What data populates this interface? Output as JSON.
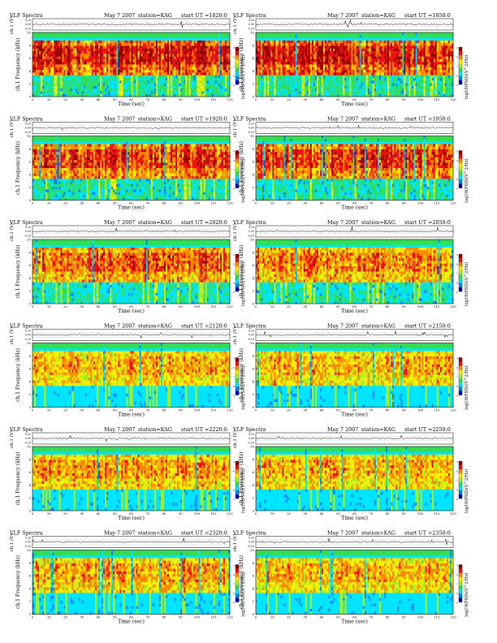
{
  "page": {
    "title": "VLF Spectra",
    "date": "May 7 2007",
    "station": "station=KAG",
    "start_prefix": "start  UT  =",
    "colors": {
      "spectrogram_scale": [
        "#0000cc",
        "#0088ff",
        "#00e5ff",
        "#33dd55",
        "#a6ee22",
        "#ffee00",
        "#ff8800",
        "#ee1111",
        "#990000"
      ],
      "waveform_line": "#000000"
    }
  },
  "chart_data": [
    {
      "type": "heatmap",
      "title": "VLF Spectra",
      "date": "May 7 2007",
      "station": "station=KAG",
      "start_ut": "1820:0",
      "waveform": {
        "ylabel": "ch.1 (V)",
        "ticks": [
          "0.20",
          "0.00",
          "-0.20"
        ]
      },
      "xlabel": "Time  (sec)",
      "xlim": [
        0,
        120
      ],
      "xticks": [
        0,
        10,
        20,
        30,
        40,
        50,
        60,
        70,
        80,
        90,
        100,
        110,
        120
      ],
      "ylabel": "ch.1 Frequency  (kHz)",
      "ylim": [
        0,
        10
      ],
      "yticks": [
        0,
        2,
        4,
        6,
        8,
        10
      ],
      "colorbar_label": "log10(PSD)(V^2/Hz)",
      "cbar_ticks": [
        "-5",
        "-6",
        "-7",
        "-8",
        "-9"
      ],
      "band_strength": 0.9,
      "lower_noise": 0.35
    },
    {
      "type": "heatmap",
      "title": "VLF Spectra",
      "date": "May 7 2007",
      "station": "station=KAG",
      "start_ut": "1850:0",
      "waveform": {
        "ylabel": "ch.1 (V)",
        "ticks": [
          "0.20",
          "0.00",
          "-0.20"
        ]
      },
      "xlabel": "Time  (sec)",
      "xlim": [
        0,
        120
      ],
      "xticks": [
        0,
        10,
        20,
        30,
        40,
        50,
        60,
        70,
        80,
        90,
        100,
        110,
        120
      ],
      "ylabel": "ch.1 Frequency  (kHz)",
      "ylim": [
        0,
        10
      ],
      "yticks": [
        0,
        2,
        4,
        6,
        8,
        10
      ],
      "colorbar_label": "log10(PSD)(V^2/Hz)",
      "cbar_ticks": [
        "-5",
        "-6",
        "-7",
        "-8",
        "-9"
      ],
      "band_strength": 0.88,
      "lower_noise": 0.35
    },
    {
      "type": "heatmap",
      "title": "VLF Spectra",
      "date": "May 7 2007",
      "station": "station=KAG",
      "start_ut": "1920:0",
      "waveform": {
        "ylabel": "ch.1 (V)",
        "ticks": [
          "0.20",
          "0.00",
          "-0.20"
        ]
      },
      "xlabel": "Time  (sec)",
      "xlim": [
        0,
        120
      ],
      "xticks": [
        0,
        10,
        20,
        30,
        40,
        50,
        60,
        70,
        80,
        90,
        100,
        110,
        120
      ],
      "ylabel": "ch.1 Frequency  (kHz)",
      "ylim": [
        0,
        10
      ],
      "yticks": [
        0,
        2,
        4,
        6,
        8,
        10
      ],
      "colorbar_label": "log10(PSD)(V^2/Hz)",
      "cbar_ticks": [
        "-5",
        "-6",
        "-7",
        "-8",
        "-9"
      ],
      "band_strength": 0.8,
      "lower_noise": 0.3
    },
    {
      "type": "heatmap",
      "title": "VLF Spectra",
      "date": "May 7 2007",
      "station": "station=KAG",
      "start_ut": "1950:0",
      "waveform": {
        "ylabel": "ch.1 (V)",
        "ticks": [
          "0.20",
          "0.00",
          "-0.20"
        ]
      },
      "xlabel": "Time  (sec)",
      "xlim": [
        0,
        120
      ],
      "xticks": [
        0,
        10,
        20,
        30,
        40,
        50,
        60,
        70,
        80,
        90,
        100,
        110,
        120
      ],
      "ylabel": "ch.1 Frequency  (kHz)",
      "ylim": [
        0,
        10
      ],
      "yticks": [
        0,
        2,
        4,
        6,
        8,
        10
      ],
      "colorbar_label": "log10(PSD)(V^2/Hz)",
      "cbar_ticks": [
        "-5",
        "-6",
        "-7",
        "-8",
        "-9"
      ],
      "band_strength": 0.82,
      "lower_noise": 0.3
    },
    {
      "type": "heatmap",
      "title": "VLF Spectra",
      "date": "May 7 2007",
      "station": "station=KAG",
      "start_ut": "2020:0",
      "waveform": {
        "ylabel": "ch.1 (V)",
        "ticks": [
          "0.20",
          "0.00",
          "-0.20"
        ]
      },
      "xlabel": "Time  (sec)",
      "xlim": [
        0,
        120
      ],
      "xticks": [
        0,
        10,
        20,
        30,
        40,
        50,
        60,
        70,
        80,
        90,
        100,
        110,
        120
      ],
      "ylabel": "ch.1 Frequency  (kHz)",
      "ylim": [
        0,
        10
      ],
      "yticks": [
        0,
        2,
        4,
        6,
        8,
        10
      ],
      "colorbar_label": "log10(PSD)(V^2/Hz)",
      "cbar_ticks": [
        "-5",
        "-6",
        "-7",
        "-8",
        "-9"
      ],
      "band_strength": 0.72,
      "lower_noise": 0.25
    },
    {
      "type": "heatmap",
      "title": "VLF Spectra",
      "date": "May 7 2007",
      "station": "station=KAG",
      "start_ut": "2050:0",
      "waveform": {
        "ylabel": "ch.1 (V)",
        "ticks": [
          "0.20",
          "0.00",
          "-0.20"
        ]
      },
      "xlabel": "Time  (sec)",
      "xlim": [
        0,
        120
      ],
      "xticks": [
        0,
        10,
        20,
        30,
        40,
        50,
        60,
        70,
        80,
        90,
        100,
        110,
        120
      ],
      "ylabel": "ch.1 Frequency  (kHz)",
      "ylim": [
        0,
        10
      ],
      "yticks": [
        0,
        2,
        4,
        6,
        8,
        10
      ],
      "colorbar_label": "log10(PSD)(V^2/Hz)",
      "cbar_ticks": [
        "-5",
        "-6",
        "-7",
        "-8",
        "-9"
      ],
      "band_strength": 0.65,
      "lower_noise": 0.25
    },
    {
      "type": "heatmap",
      "title": "VLF Spectra",
      "date": "May 7 2007",
      "station": "station=KAG",
      "start_ut": "2120:0",
      "waveform": {
        "ylabel": "ch.1 (V)",
        "ticks": [
          "0.20",
          "0.00",
          "-0.20"
        ]
      },
      "xlabel": "Time  (sec)",
      "xlim": [
        0,
        120
      ],
      "xticks": [
        0,
        10,
        20,
        30,
        40,
        50,
        60,
        70,
        80,
        90,
        100,
        110,
        120
      ],
      "ylabel": "ch.1 Frequency  (kHz)",
      "ylim": [
        0,
        10
      ],
      "yticks": [
        0,
        2,
        4,
        6,
        8,
        10
      ],
      "colorbar_label": "log10(PSD)(V^2/Hz)",
      "cbar_ticks": [
        "-5",
        "-6",
        "-7",
        "-8",
        "-9"
      ],
      "band_strength": 0.55,
      "lower_noise": 0.15
    },
    {
      "type": "heatmap",
      "title": "VLF Spectra",
      "date": "May 7 2007",
      "station": "station=KAG",
      "start_ut": "2150:0",
      "waveform": {
        "ylabel": "ch.1 (V)",
        "ticks": [
          "0.20",
          "0.00",
          "-0.20"
        ]
      },
      "xlabel": "Time  (sec)",
      "xlim": [
        0,
        120
      ],
      "xticks": [
        0,
        10,
        20,
        30,
        40,
        50,
        60,
        70,
        80,
        90,
        100,
        110,
        120
      ],
      "ylabel": "ch.1 Frequency  (kHz)",
      "ylim": [
        0,
        10
      ],
      "yticks": [
        0,
        2,
        4,
        6,
        8,
        10
      ],
      "colorbar_label": "log10(PSD)(V^2/Hz)",
      "cbar_ticks": [
        "-5",
        "-6",
        "-7",
        "-8",
        "-9"
      ],
      "band_strength": 0.55,
      "lower_noise": 0.15
    },
    {
      "type": "heatmap",
      "title": "VLF Spectra",
      "date": "May 7 2007",
      "station": "station=KAG",
      "start_ut": "2220:0",
      "waveform": {
        "ylabel": "ch.1 (V)",
        "ticks": [
          "0.20",
          "0.00",
          "-0.20"
        ]
      },
      "xlabel": "Time  (sec)",
      "xlim": [
        0,
        120
      ],
      "xticks": [
        0,
        10,
        20,
        30,
        40,
        50,
        60,
        70,
        80,
        90,
        100,
        110,
        120
      ],
      "ylabel": "ch.1 Frequency  (kHz)",
      "ylim": [
        0,
        10
      ],
      "yticks": [
        0,
        2,
        4,
        6,
        8,
        10
      ],
      "colorbar_label": "log10(PSD)(V^2/Hz)",
      "cbar_ticks": [
        "-5",
        "-6",
        "-7",
        "-8",
        "-9"
      ],
      "band_strength": 0.6,
      "lower_noise": 0.12
    },
    {
      "type": "heatmap",
      "title": "VLF Spectra",
      "date": "May 7 2007",
      "station": "station=KAG",
      "start_ut": "2250:0",
      "waveform": {
        "ylabel": "ch.1 (V)",
        "ticks": [
          "0.20",
          "0.00",
          "-0.20"
        ]
      },
      "xlabel": "Time  (sec)",
      "xlim": [
        0,
        120
      ],
      "xticks": [
        0,
        10,
        20,
        30,
        40,
        50,
        60,
        70,
        80,
        90,
        100,
        110,
        120
      ],
      "ylabel": "ch.1 Frequency  (kHz)",
      "ylim": [
        0,
        10
      ],
      "yticks": [
        0,
        2,
        4,
        6,
        8,
        10
      ],
      "colorbar_label": "log10(PSD)(V^2/Hz)",
      "cbar_ticks": [
        "-5",
        "-6",
        "-7",
        "-8",
        "-9"
      ],
      "band_strength": 0.55,
      "lower_noise": 0.12
    },
    {
      "type": "heatmap",
      "title": "VLF Spectra",
      "date": "May 7 2007",
      "station": "station=KAG",
      "start_ut": "2320:0",
      "waveform": {
        "ylabel": "ch.1 (V)",
        "ticks": [
          "0.20",
          "0.00",
          "-0.20"
        ]
      },
      "xlabel": "Time  (sec)",
      "xlim": [
        0,
        120
      ],
      "xticks": [
        0,
        10,
        20,
        30,
        40,
        50,
        60,
        70,
        80,
        90,
        100,
        110,
        120
      ],
      "ylabel": "ch.1 Frequency  (kHz)",
      "ylim": [
        0,
        10
      ],
      "yticks": [
        0,
        2,
        4,
        6,
        8,
        10
      ],
      "colorbar_label": "log10(PSD)(V^2/Hz)",
      "cbar_ticks": [
        "-5",
        "-6",
        "-7",
        "-8",
        "-9"
      ],
      "band_strength": 0.6,
      "lower_noise": 0.15
    },
    {
      "type": "heatmap",
      "title": "VLF Spectra",
      "date": "May 7 2007",
      "station": "station=KAG",
      "start_ut": "2350:0",
      "waveform": {
        "ylabel": "ch.1 (V)",
        "ticks": [
          "0.20",
          "0.00",
          "-0.20"
        ]
      },
      "xlabel": "Time  (sec)",
      "xlim": [
        0,
        120
      ],
      "xticks": [
        0,
        10,
        20,
        30,
        40,
        50,
        60,
        70,
        80,
        90,
        100,
        110,
        120
      ],
      "ylabel": "ch.1 Frequency  (kHz)",
      "ylim": [
        0,
        10
      ],
      "yticks": [
        0,
        2,
        4,
        6,
        8,
        10
      ],
      "colorbar_label": "log10(PSD)(V^2/Hz)",
      "cbar_ticks": [
        "-5",
        "-6",
        "-7",
        "-8",
        "-9"
      ],
      "band_strength": 0.55,
      "lower_noise": 0.15
    }
  ]
}
